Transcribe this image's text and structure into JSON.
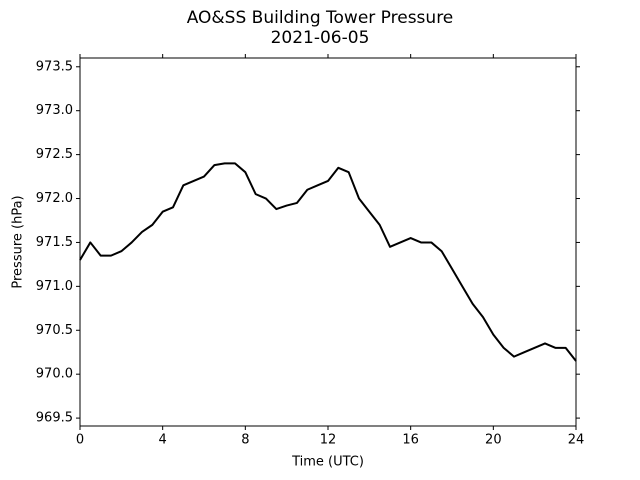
{
  "chart_data": {
    "type": "line",
    "title": "AO&SS Building Tower Pressure",
    "subtitle": "2021-06-05",
    "x_label": "Time (UTC)",
    "y_label": "Pressure (hPa)",
    "x": [
      0,
      0.5,
      1,
      1.5,
      2,
      2.5,
      3,
      3.5,
      4,
      4.5,
      5,
      5.5,
      6,
      6.5,
      7,
      7.5,
      8,
      8.5,
      9,
      9.5,
      10,
      10.5,
      11,
      11.5,
      12,
      12.5,
      13,
      13.5,
      14,
      14.5,
      15,
      15.5,
      16,
      16.5,
      17,
      17.5,
      18,
      18.5,
      19,
      19.5,
      20,
      20.5,
      21,
      21.5,
      22,
      22.5,
      23,
      23.5,
      24
    ],
    "series": [
      {
        "name": "Pressure",
        "color": "#000000",
        "values": [
          971.3,
          971.5,
          971.35,
          971.35,
          971.4,
          971.5,
          971.62,
          971.7,
          971.85,
          971.9,
          972.15,
          972.2,
          972.25,
          972.38,
          972.4,
          972.4,
          972.3,
          972.05,
          972.0,
          971.88,
          971.92,
          971.95,
          972.1,
          972.15,
          972.2,
          972.35,
          972.3,
          972.0,
          971.85,
          971.7,
          971.45,
          971.5,
          971.55,
          971.5,
          971.5,
          971.4,
          971.2,
          971.0,
          970.8,
          970.65,
          970.45,
          970.3,
          970.2,
          970.25,
          970.3,
          970.35,
          970.3,
          970.3,
          970.15
        ]
      }
    ],
    "xlim": [
      0,
      24
    ],
    "xticks": [
      0,
      4,
      8,
      12,
      16,
      20,
      24
    ],
    "ylim": [
      969.41,
      973.6
    ],
    "yticks": [
      969.5,
      {
        "value": 970.0,
        "label": "970.0"
      },
      970.5,
      {
        "value": 971.0,
        "label": "971.0"
      },
      971.5,
      {
        "value": 972.0,
        "label": "972.0"
      },
      972.5,
      {
        "value": 973.0,
        "label": "973.0"
      },
      973.5
    ],
    "grid": false
  }
}
